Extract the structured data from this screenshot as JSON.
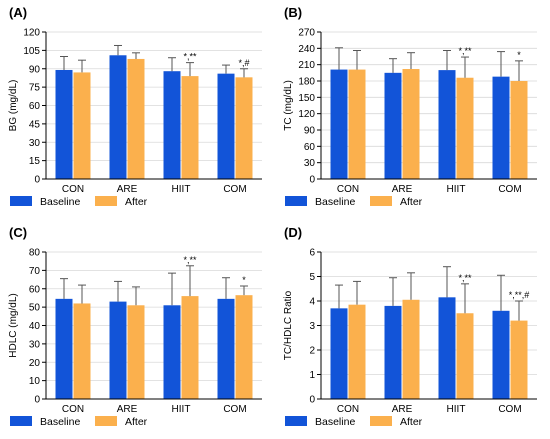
{
  "figure": {
    "colors": {
      "baseline": "#1254d8",
      "after": "#fbb04d",
      "axis": "#000000",
      "grid": "#d9d9d9"
    }
  },
  "chart_data": [
    {
      "type": "bar",
      "panel_label": "(A)",
      "ylabel": "BG (mg/dL)",
      "ylim": [
        0,
        120
      ],
      "yticks": [
        0,
        15,
        30,
        45,
        60,
        75,
        90,
        105,
        120
      ],
      "categories": [
        "CON",
        "ARE",
        "HIIT",
        "COM"
      ],
      "series": [
        {
          "name": "Baseline",
          "values": [
            89,
            101,
            88,
            86
          ],
          "errors": [
            11,
            8,
            11,
            7
          ]
        },
        {
          "name": "After",
          "values": [
            87,
            98,
            84,
            83
          ],
          "errors": [
            10,
            5,
            11,
            7
          ]
        }
      ],
      "annotations": [
        {
          "category": "HIIT",
          "series": "After",
          "text": "*,**"
        },
        {
          "category": "COM",
          "series": "After",
          "text": "*,#"
        }
      ],
      "legend": "bottom",
      "grid": true
    },
    {
      "type": "bar",
      "panel_label": "(B)",
      "ylabel": "TC (mg/dL)",
      "ylim": [
        0,
        270
      ],
      "yticks": [
        0,
        30,
        60,
        90,
        120,
        150,
        180,
        210,
        240,
        270
      ],
      "categories": [
        "CON",
        "ARE",
        "HIIT",
        "COM"
      ],
      "series": [
        {
          "name": "Baseline",
          "values": [
            201,
            195,
            200,
            188
          ],
          "errors": [
            40,
            26,
            36,
            46
          ]
        },
        {
          "name": "After",
          "values": [
            201,
            202,
            186,
            180
          ],
          "errors": [
            35,
            30,
            38,
            37
          ]
        }
      ],
      "annotations": [
        {
          "category": "HIIT",
          "series": "After",
          "text": "*,**"
        },
        {
          "category": "COM",
          "series": "After",
          "text": "*"
        }
      ],
      "legend": "bottom",
      "grid": true
    },
    {
      "type": "bar",
      "panel_label": "(C)",
      "ylabel": "HDLC (mg/dL)",
      "ylim": [
        0,
        80
      ],
      "yticks": [
        0,
        10,
        20,
        30,
        40,
        50,
        60,
        70,
        80
      ],
      "categories": [
        "CON",
        "ARE",
        "HIIT",
        "COM"
      ],
      "series": [
        {
          "name": "Baseline",
          "values": [
            54.5,
            53,
            51,
            54.5
          ],
          "errors": [
            11,
            11,
            17.5,
            11.5
          ]
        },
        {
          "name": "After",
          "values": [
            52,
            51,
            56,
            56.5
          ],
          "errors": [
            10,
            10,
            16.5,
            5
          ]
        }
      ],
      "annotations": [
        {
          "category": "HIIT",
          "series": "After",
          "text": "*,**"
        },
        {
          "category": "COM",
          "series": "After",
          "text": "*"
        }
      ],
      "legend": "bottom",
      "grid": true
    },
    {
      "type": "bar",
      "panel_label": "(D)",
      "ylabel": "TC/HDLC Ratio",
      "ylim": [
        0,
        6
      ],
      "yticks": [
        0,
        1,
        2,
        3,
        4,
        5,
        6
      ],
      "categories": [
        "CON",
        "ARE",
        "HIIT",
        "COM"
      ],
      "series": [
        {
          "name": "Baseline",
          "values": [
            3.7,
            3.8,
            4.15,
            3.6
          ],
          "errors": [
            0.95,
            1.15,
            1.25,
            1.45
          ]
        },
        {
          "name": "After",
          "values": [
            3.85,
            4.05,
            3.5,
            3.2
          ],
          "errors": [
            0.95,
            1.1,
            1.2,
            0.8
          ]
        }
      ],
      "annotations": [
        {
          "category": "HIIT",
          "series": "After",
          "text": "*,**"
        },
        {
          "category": "COM",
          "series": "After",
          "text": "*,**,#"
        }
      ],
      "legend": "bottom",
      "grid": true
    }
  ]
}
